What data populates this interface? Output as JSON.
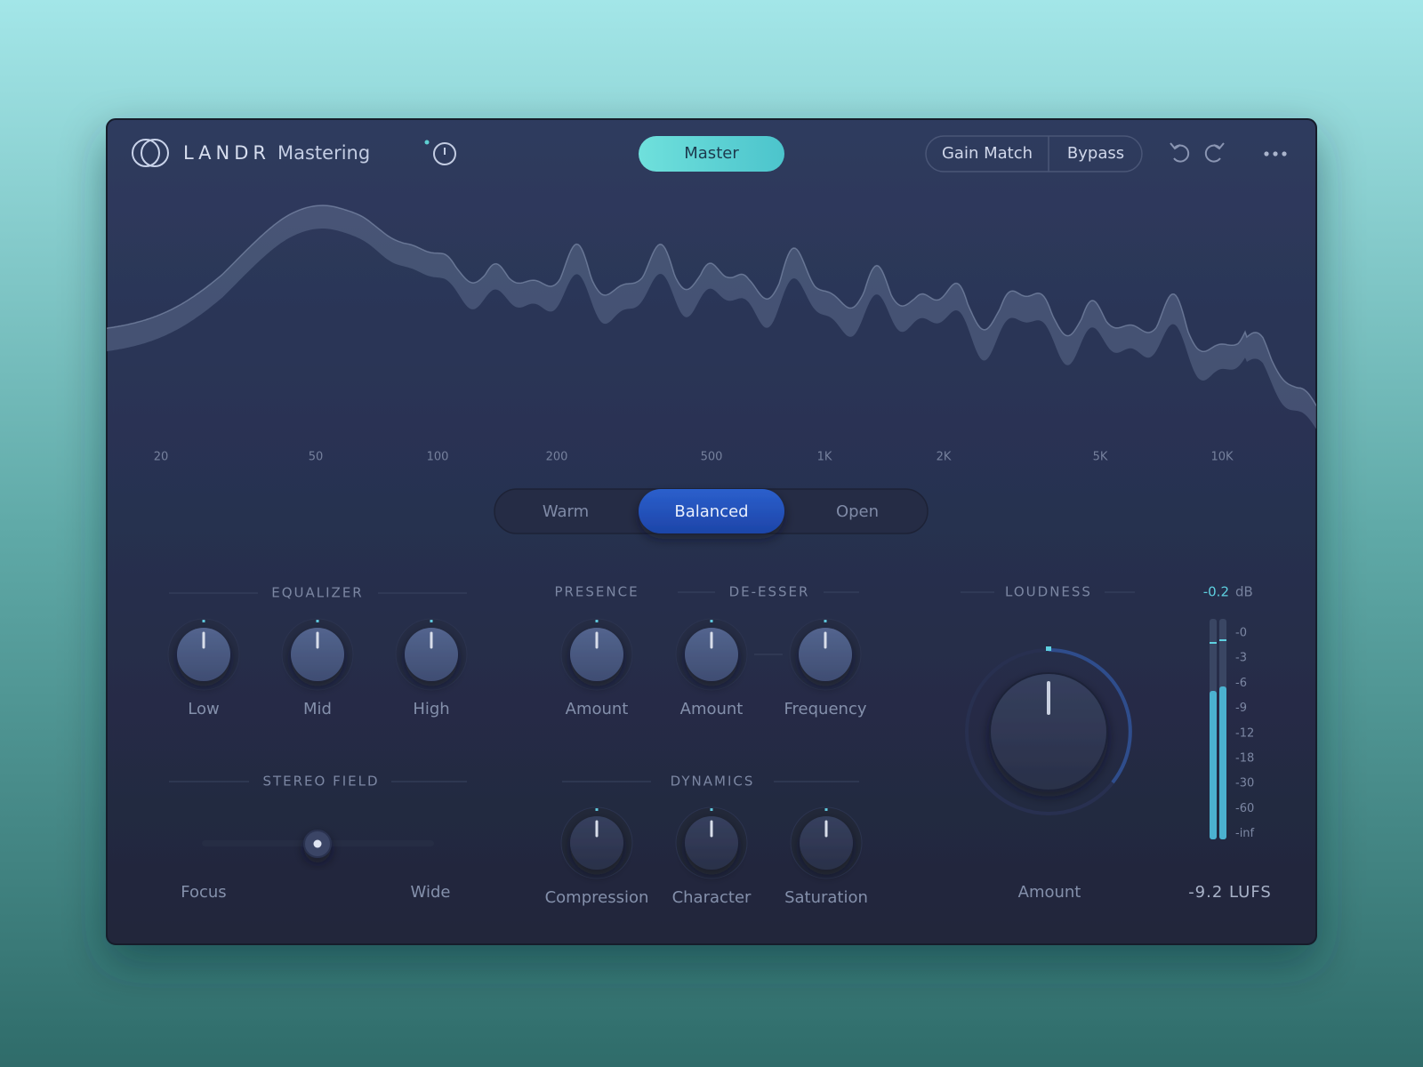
{
  "header": {
    "brand": "LANDR",
    "product": "Mastering",
    "mode": "Master",
    "gain_match": "Gain Match",
    "bypass": "Bypass"
  },
  "spectrum": {
    "freq_labels": [
      "20",
      "50",
      "100",
      "200",
      "500",
      "1K",
      "2K",
      "5K",
      "10K"
    ]
  },
  "character": {
    "options": [
      "Warm",
      "Balanced",
      "Open"
    ],
    "selected": "Balanced"
  },
  "equalizer": {
    "title": "EQUALIZER",
    "knobs": [
      "Low",
      "Mid",
      "High"
    ]
  },
  "presence": {
    "title": "PRESENCE",
    "knobs": [
      "Amount"
    ]
  },
  "de_esser": {
    "title": "DE-ESSER",
    "knobs": [
      "Amount",
      "Frequency"
    ]
  },
  "stereo_field": {
    "title": "STEREO FIELD",
    "min_label": "Focus",
    "max_label": "Wide"
  },
  "dynamics": {
    "title": "DYNAMICS",
    "knobs": [
      "Compression",
      "Character",
      "Saturation"
    ]
  },
  "loudness": {
    "title": "LOUDNESS",
    "knob_label": "Amount",
    "peak": "-0.2",
    "peak_unit": "dB",
    "meter_scale": [
      "-0",
      "-3",
      "-6",
      "-9",
      "-12",
      "-18",
      "-30",
      "-60",
      "-inf"
    ],
    "lufs": "-9.2 LUFS"
  }
}
